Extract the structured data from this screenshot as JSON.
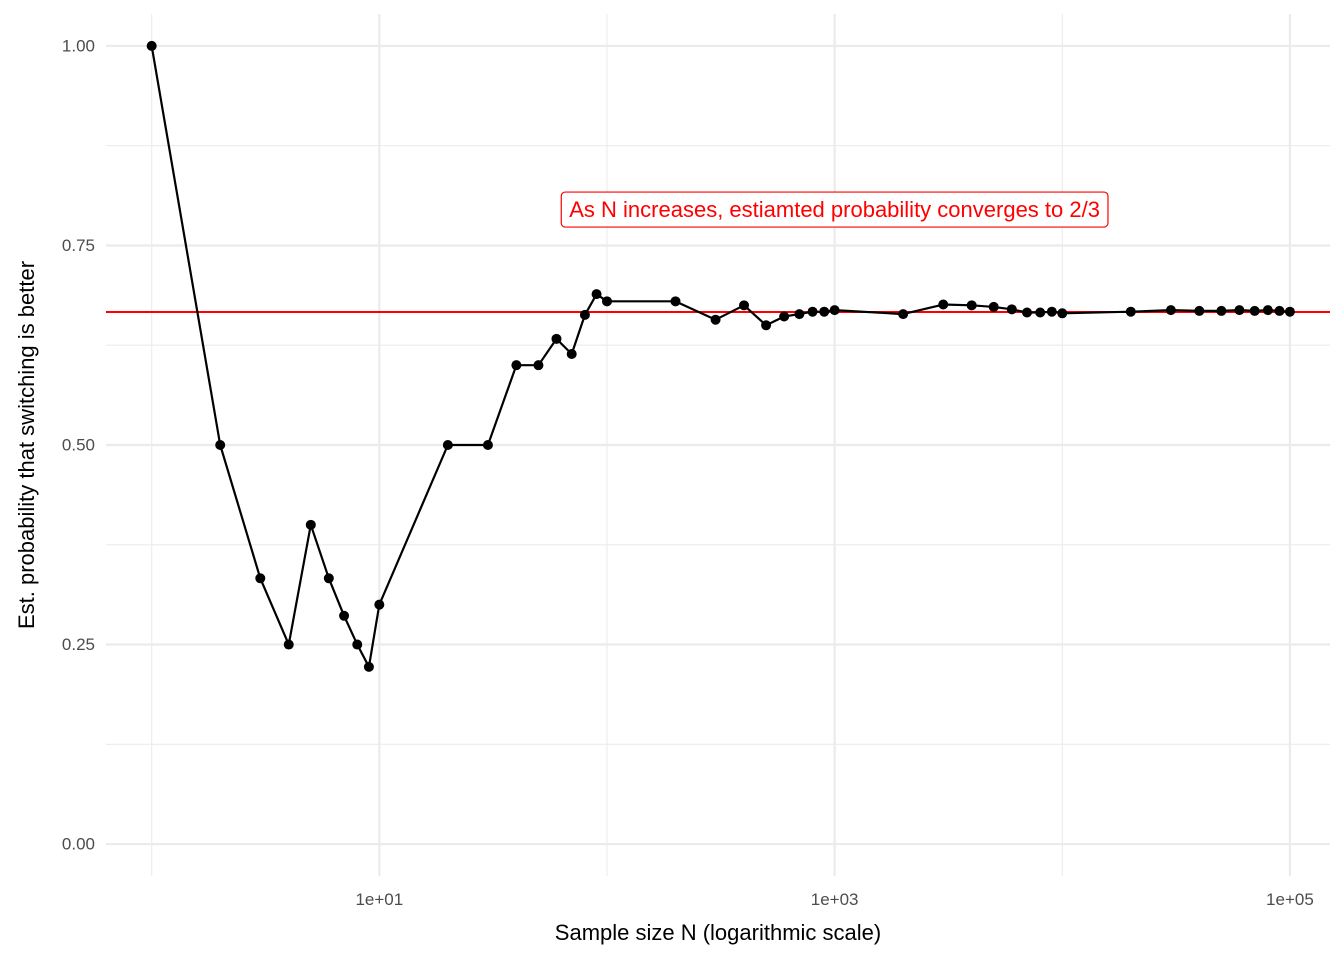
{
  "chart_data": {
    "type": "line",
    "xlabel": "Sample size N (logarithmic scale)",
    "ylabel": "Est. probability that switching is better",
    "x_scale": "log10",
    "xlim": [
      0.63,
      150000
    ],
    "ylim": [
      -0.04,
      1.04
    ],
    "x_ticks": [
      {
        "value": 10,
        "label": "1e+01"
      },
      {
        "value": 1000,
        "label": "1e+03"
      },
      {
        "value": 100000,
        "label": "1e+05"
      }
    ],
    "y_ticks": [
      {
        "value": 0,
        "label": "0.00"
      },
      {
        "value": 0.25,
        "label": "0.25"
      },
      {
        "value": 0.5,
        "label": "0.50"
      },
      {
        "value": 0.75,
        "label": "0.75"
      },
      {
        "value": 1,
        "label": "1.00"
      }
    ],
    "grid": true,
    "series": [
      {
        "x": [
          1,
          2,
          3,
          4,
          5,
          6,
          7,
          8,
          9,
          10,
          20,
          30,
          40,
          50,
          60,
          70,
          80,
          90,
          100,
          200,
          300,
          400,
          500,
          600,
          700,
          800,
          900,
          1000,
          2000,
          3000,
          4000,
          5000,
          6000,
          7000,
          8000,
          9000,
          10000,
          20000,
          30000,
          40000,
          50000,
          60000,
          70000,
          80000,
          90000,
          100000
        ],
        "y": [
          1.0,
          0.5,
          0.333,
          0.25,
          0.4,
          0.333,
          0.286,
          0.25,
          0.222,
          0.3,
          0.5,
          0.5,
          0.6,
          0.6,
          0.633,
          0.614,
          0.663,
          0.689,
          0.68,
          0.68,
          0.657,
          0.675,
          0.65,
          0.661,
          0.664,
          0.667,
          0.667,
          0.669,
          0.664,
          0.676,
          0.675,
          0.673,
          0.67,
          0.666,
          0.666,
          0.667,
          0.665,
          0.667,
          0.669,
          0.668,
          0.668,
          0.669,
          0.668,
          0.669,
          0.668,
          0.667
        ]
      }
    ],
    "reference_line": {
      "y": 0.6667
    },
    "annotation": {
      "text": "As N increases, estiamted probability converges to 2/3",
      "x": 1000,
      "y": 0.795
    },
    "colors": {
      "points": "#000000",
      "line": "#000000",
      "reference": "#ff0000",
      "annotation": "#ff0000",
      "grid": "#ebebeb",
      "tick_text": "#4d4d4d",
      "axis_title": "#000000"
    }
  }
}
